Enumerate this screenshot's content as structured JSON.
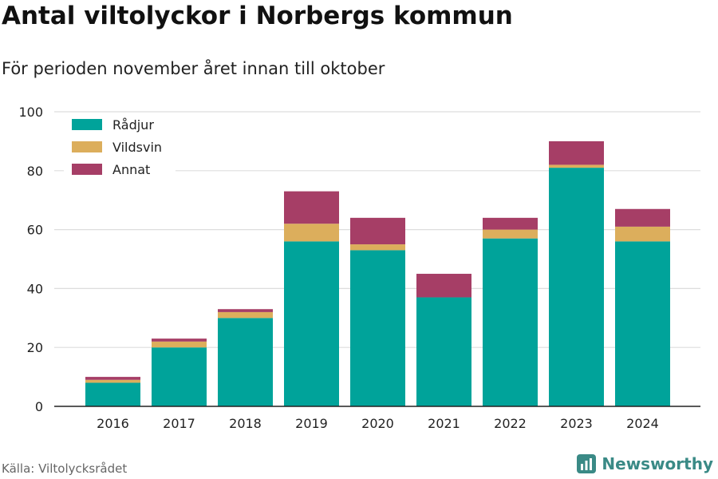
{
  "header": {
    "title": "Antal viltolyckor i Norbergs kommun",
    "subtitle": "För perioden november året innan till oktober"
  },
  "footer": {
    "source": "Källa: Viltolycksrådet",
    "brand": "Newsworthy",
    "brand_icon": "bar-chart-logo-icon"
  },
  "colors": {
    "series": [
      "#00a39a",
      "#dcae5c",
      "#a63e66"
    ],
    "grid": "#dddddd",
    "brand": "#3a8a86"
  },
  "chart_data": {
    "type": "bar",
    "stacked": true,
    "categories": [
      "2016",
      "2017",
      "2018",
      "2019",
      "2020",
      "2021",
      "2022",
      "2023",
      "2024"
    ],
    "series": [
      {
        "name": "Rådjur",
        "values": [
          8,
          20,
          30,
          56,
          53,
          37,
          57,
          81,
          56
        ]
      },
      {
        "name": "Vildsvin",
        "values": [
          1,
          2,
          2,
          6,
          2,
          0,
          3,
          1,
          5
        ]
      },
      {
        "name": "Annat",
        "values": [
          1,
          1,
          1,
          11,
          9,
          8,
          4,
          8,
          6
        ]
      }
    ],
    "ylim": [
      0,
      100
    ],
    "yticks": [
      0,
      20,
      40,
      60,
      80,
      100
    ],
    "grid": true,
    "legend": "top-left"
  }
}
